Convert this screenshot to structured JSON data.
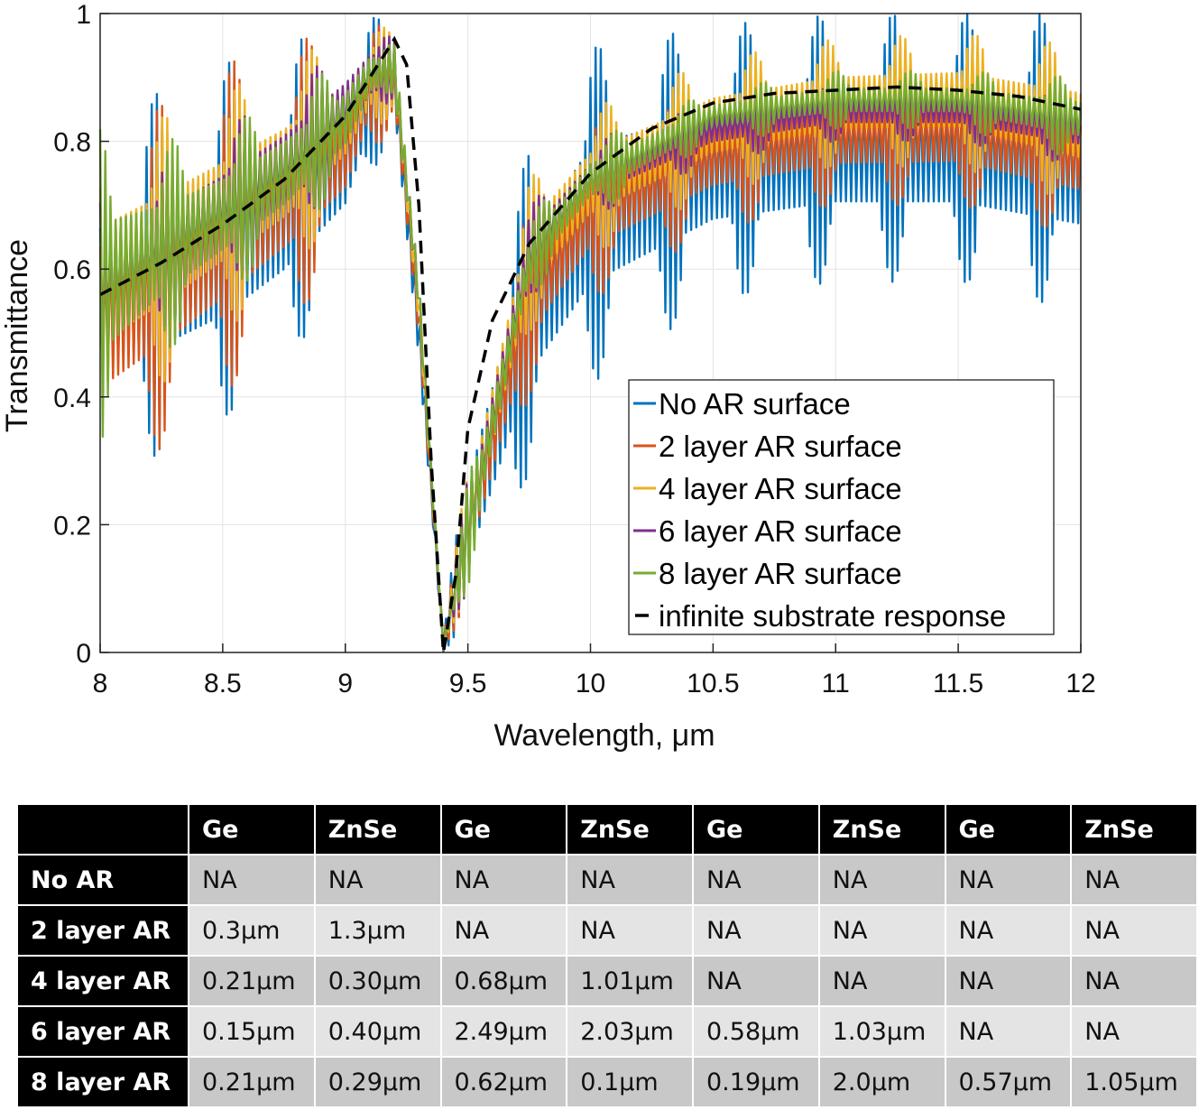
{
  "chart_data": {
    "type": "line",
    "title": "",
    "xlabel": "Wavelength, μm",
    "ylabel": "Transmittance",
    "xlim": [
      8,
      12
    ],
    "ylim": [
      0,
      1
    ],
    "x_ticks": [
      "8",
      "8.5",
      "9",
      "9.5",
      "10",
      "10.5",
      "11",
      "11.5",
      "12"
    ],
    "y_ticks": [
      "0",
      "0.2",
      "0.4",
      "0.6",
      "0.8",
      "1"
    ],
    "grid": true,
    "legend_position": "bottom-right",
    "series": [
      {
        "name": "No AR surface",
        "color": "#0072BD",
        "style": "oscillating",
        "x": [
          8.0,
          8.25,
          8.5,
          8.75,
          9.0,
          9.1,
          9.2,
          9.3,
          9.4,
          9.5,
          9.75,
          10.0,
          10.5,
          11.0,
          11.5,
          12.0
        ],
        "upper": [
          0.83,
          0.88,
          0.92,
          0.95,
          0.99,
          1.0,
          0.98,
          0.6,
          0.02,
          0.35,
          0.8,
          0.95,
          0.98,
          1.0,
          1.0,
          1.0
        ],
        "lower": [
          0.28,
          0.31,
          0.36,
          0.45,
          0.58,
          0.75,
          0.8,
          0.4,
          0.0,
          0.05,
          0.28,
          0.42,
          0.55,
          0.58,
          0.58,
          0.53
        ]
      },
      {
        "name": "2 layer AR surface",
        "color": "#D95319",
        "style": "oscillating",
        "x": [
          8.0,
          8.25,
          8.5,
          8.75,
          9.0,
          9.1,
          9.2,
          9.3,
          9.4,
          9.5,
          9.75,
          10.0,
          10.5,
          11.0,
          11.5,
          12.0
        ],
        "upper": [
          0.8,
          0.86,
          0.92,
          0.95,
          0.98,
          0.99,
          0.97,
          0.6,
          0.02,
          0.3,
          0.72,
          0.84,
          0.9,
          0.92,
          0.93,
          0.9
        ],
        "lower": [
          0.25,
          0.32,
          0.4,
          0.5,
          0.62,
          0.78,
          0.82,
          0.45,
          0.0,
          0.08,
          0.4,
          0.55,
          0.66,
          0.7,
          0.7,
          0.65
        ]
      },
      {
        "name": "4 layer AR surface",
        "color": "#EDB120",
        "style": "oscillating",
        "x": [
          8.0,
          8.25,
          8.5,
          8.75,
          9.0,
          9.1,
          9.2,
          9.3,
          9.4,
          9.5,
          9.75,
          10.0,
          10.5,
          11.0,
          11.5,
          12.0
        ],
        "upper": [
          0.8,
          0.84,
          0.88,
          0.92,
          0.97,
          0.99,
          0.97,
          0.62,
          0.02,
          0.3,
          0.74,
          0.85,
          0.93,
          0.96,
          0.97,
          0.95
        ],
        "lower": [
          0.35,
          0.42,
          0.5,
          0.58,
          0.7,
          0.8,
          0.85,
          0.47,
          0.0,
          0.1,
          0.5,
          0.62,
          0.72,
          0.76,
          0.76,
          0.7
        ]
      },
      {
        "name": "6 layer AR surface",
        "color": "#7E2F8E",
        "style": "oscillating",
        "x": [
          8.0,
          8.25,
          8.5,
          8.75,
          9.0,
          9.1,
          9.2,
          9.3,
          9.4,
          9.5,
          9.75,
          10.0,
          10.5,
          11.0,
          11.5,
          12.0
        ],
        "upper": [
          0.72,
          0.77,
          0.82,
          0.88,
          0.95,
          0.98,
          0.96,
          0.62,
          0.02,
          0.28,
          0.7,
          0.8,
          0.87,
          0.9,
          0.9,
          0.88
        ],
        "lower": [
          0.42,
          0.5,
          0.57,
          0.64,
          0.75,
          0.83,
          0.87,
          0.5,
          0.0,
          0.1,
          0.55,
          0.68,
          0.77,
          0.8,
          0.8,
          0.76
        ]
      },
      {
        "name": "8 layer AR surface",
        "color": "#77AC30",
        "style": "oscillating",
        "x": [
          8.0,
          8.25,
          8.5,
          8.75,
          9.0,
          9.1,
          9.2,
          9.3,
          9.4,
          9.5,
          9.75,
          10.0,
          10.5,
          11.0,
          11.5,
          12.0
        ],
        "upper": [
          0.82,
          0.8,
          0.82,
          0.87,
          0.93,
          0.97,
          0.95,
          0.62,
          0.02,
          0.27,
          0.68,
          0.8,
          0.88,
          0.91,
          0.91,
          0.9
        ],
        "lower": [
          0.32,
          0.46,
          0.55,
          0.63,
          0.74,
          0.84,
          0.88,
          0.5,
          0.0,
          0.1,
          0.55,
          0.68,
          0.8,
          0.82,
          0.82,
          0.77
        ]
      },
      {
        "name": "infinite substrate response",
        "color": "#000000",
        "style": "dashed",
        "x": [
          8.0,
          8.25,
          8.5,
          8.75,
          9.0,
          9.1,
          9.2,
          9.25,
          9.3,
          9.35,
          9.4,
          9.45,
          9.5,
          9.6,
          9.75,
          10.0,
          10.25,
          10.5,
          10.75,
          11.0,
          11.25,
          11.5,
          11.75,
          12.0
        ],
        "y": [
          0.56,
          0.61,
          0.67,
          0.74,
          0.84,
          0.9,
          0.96,
          0.92,
          0.7,
          0.3,
          0.0,
          0.12,
          0.35,
          0.52,
          0.64,
          0.75,
          0.82,
          0.86,
          0.875,
          0.88,
          0.885,
          0.88,
          0.87,
          0.85
        ]
      }
    ]
  },
  "table": {
    "headers": [
      "",
      "Ge",
      "ZnSe",
      "Ge",
      "ZnSe",
      "Ge",
      "ZnSe",
      "Ge",
      "ZnSe"
    ],
    "rows": [
      [
        "No AR",
        "NA",
        "NA",
        "NA",
        "NA",
        "NA",
        "NA",
        "NA",
        "NA"
      ],
      [
        "2 layer AR",
        "0.3μm",
        "1.3μm",
        "NA",
        "NA",
        "NA",
        "NA",
        "NA",
        "NA"
      ],
      [
        "4 layer AR",
        "0.21μm",
        "0.30μm",
        "0.68μm",
        "1.01μm",
        "NA",
        "NA",
        "NA",
        "NA"
      ],
      [
        "6 layer AR",
        "0.15μm",
        "0.40μm",
        "2.49μm",
        "2.03μm",
        "0.58μm",
        "1.03μm",
        "NA",
        "NA"
      ],
      [
        "8 layer AR",
        "0.21μm",
        "0.29μm",
        "0.62μm",
        "0.1μm",
        "0.19μm",
        "2.0μm",
        "0.57μm",
        "1.05μm"
      ]
    ]
  }
}
